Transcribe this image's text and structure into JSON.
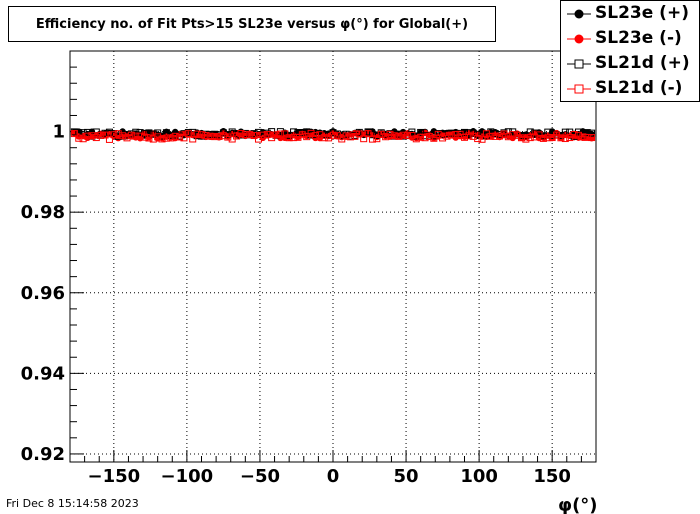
{
  "chart_data": {
    "type": "scatter",
    "title": "Efficiency no. of Fit Pts>15 SL23e versus φ(°) for Global(+)",
    "xlabel": "φ(°)",
    "ylabel": "",
    "xlim": [
      -180,
      180
    ],
    "ylim": [
      0.918,
      1.02
    ],
    "x_ticks": [
      {
        "value": -150,
        "label": "−150"
      },
      {
        "value": -100,
        "label": "−100"
      },
      {
        "value": -50,
        "label": "−50"
      },
      {
        "value": 0,
        "label": "0"
      },
      {
        "value": 50,
        "label": "50"
      },
      {
        "value": 100,
        "label": "100"
      },
      {
        "value": 150,
        "label": "150"
      }
    ],
    "y_ticks": [
      {
        "value": 0.92,
        "label": "0.92"
      },
      {
        "value": 0.94,
        "label": "0.94"
      },
      {
        "value": 0.96,
        "label": "0.96"
      },
      {
        "value": 0.98,
        "label": "0.98"
      },
      {
        "value": 1.0,
        "label": "1"
      }
    ],
    "grid": true,
    "legend_position": "top-right",
    "series": [
      {
        "name": "SL23e (+)",
        "color": "#000000",
        "marker": "filled-circle",
        "x_range": [
          -177,
          177
        ],
        "step": 3,
        "baseline": 0.9995,
        "spread": 0.0012
      },
      {
        "name": "SL23e (-)",
        "color": "#ff0000",
        "marker": "filled-circle",
        "x_range": [
          -177,
          177
        ],
        "step": 3,
        "baseline": 0.999,
        "spread": 0.0014
      },
      {
        "name": "SL21d (+)",
        "color": "#000000",
        "marker": "open-square",
        "x_range": [
          -177,
          177
        ],
        "step": 3,
        "baseline": 0.9994,
        "spread": 0.0012
      },
      {
        "name": "SL21d (-)",
        "color": "#ff0000",
        "marker": "open-square",
        "x_range": [
          -177,
          177
        ],
        "step": 3,
        "baseline": 0.9988,
        "spread": 0.0015
      }
    ]
  },
  "footer": {
    "timestamp": "Fri Dec  8 15:14:58 2023"
  }
}
